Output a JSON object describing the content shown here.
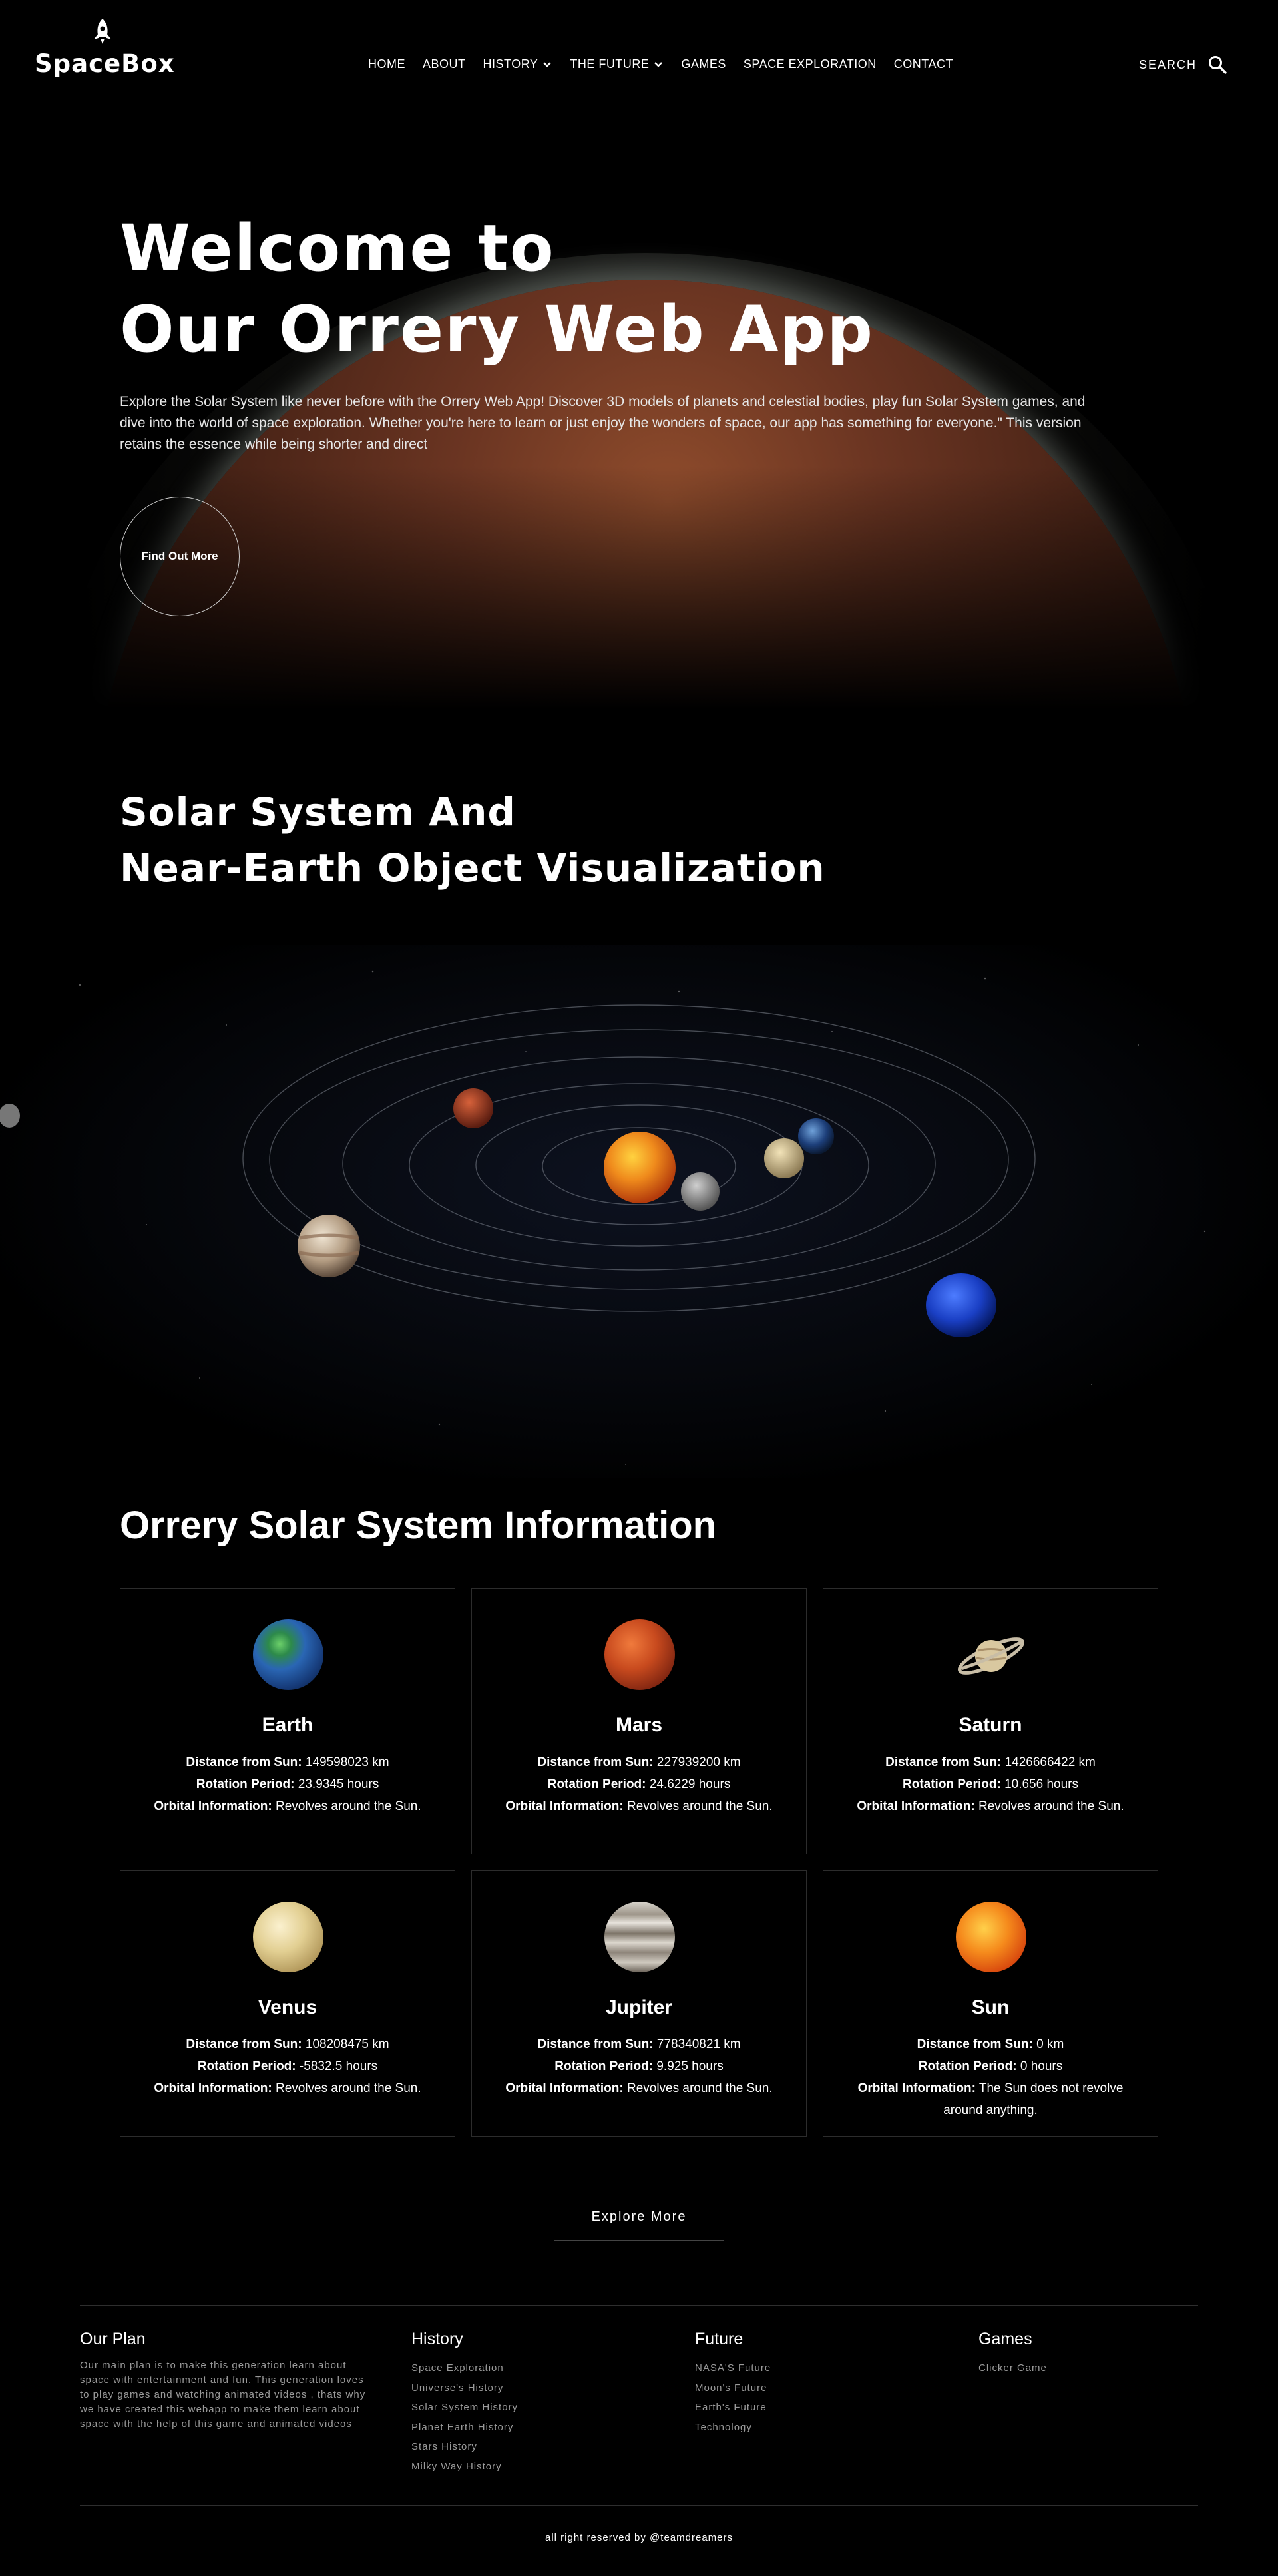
{
  "header": {
    "logo": "SpaceBox",
    "nav": [
      {
        "label": "HOME",
        "dropdown": false
      },
      {
        "label": "ABOUT",
        "dropdown": false
      },
      {
        "label": "HISTORY",
        "dropdown": true
      },
      {
        "label": "THE FUTURE",
        "dropdown": true
      },
      {
        "label": "GAMES",
        "dropdown": false
      },
      {
        "label": "SPACE EXPLORATION",
        "dropdown": false
      },
      {
        "label": "CONTACT",
        "dropdown": false
      }
    ],
    "search_label": "SEARCH"
  },
  "hero": {
    "title_line1": "Welcome to",
    "title_line2": "Our Orrery Web App",
    "description": "Explore the Solar System like never before with the Orrery Web App! Discover 3D models of planets and celestial bodies, play fun Solar System games, and dive into the world of space exploration. Whether you're here to learn or just enjoy the wonders of space, our app has something for everyone.\" This version retains the essence while being shorter and direct",
    "button": "Find Out More"
  },
  "visualization": {
    "title_line1": "Solar System And",
    "title_line2": "Near-Earth Object Visualization"
  },
  "info": {
    "title": "Orrery Solar System Information",
    "labels": {
      "distance": "Distance from Sun:",
      "rotation": "Rotation Period:",
      "orbital": "Orbital Information:"
    },
    "cards": [
      {
        "name": "Earth",
        "distance": "149598023 km",
        "rotation": "23.9345 hours",
        "orbital": "Revolves around the Sun."
      },
      {
        "name": "Mars",
        "distance": "227939200 km",
        "rotation": "24.6229 hours",
        "orbital": "Revolves around the Sun."
      },
      {
        "name": "Saturn",
        "distance": "1426666422 km",
        "rotation": "10.656 hours",
        "orbital": "Revolves around the Sun."
      },
      {
        "name": "Venus",
        "distance": "108208475 km",
        "rotation": "-5832.5 hours",
        "orbital": "Revolves around the Sun."
      },
      {
        "name": "Jupiter",
        "distance": "778340821 km",
        "rotation": "9.925 hours",
        "orbital": "Revolves around the Sun."
      },
      {
        "name": "Sun",
        "distance": "0 km",
        "rotation": "0 hours",
        "orbital": "The Sun does not revolve around anything."
      }
    ],
    "explore_button": "Explore More"
  },
  "footer": {
    "plan_title": "Our Plan",
    "plan_text": "Our main plan is to make this generation learn about space with entertainment and fun. This generation loves to play games and watching animated videos , thats why we have created this webapp to make them learn about space with the help of this game and animated videos",
    "history_title": "History",
    "history_links": [
      "Space Exploration",
      "Universe's History",
      "Solar System History",
      "Planet Earth History",
      "Stars History",
      "Milky Way History"
    ],
    "future_title": "Future",
    "future_links": [
      "NASA'S Future",
      "Moon's Future",
      "Earth's Future",
      "Technology"
    ],
    "games_title": "Games",
    "games_links": [
      "Clicker Game"
    ],
    "copyright": "all right reserved by @teamdreamers"
  },
  "colors": {
    "background": "#000000",
    "mars": "#6b3522",
    "sun": "#e8691a",
    "neptune": "#1a3fc4"
  }
}
